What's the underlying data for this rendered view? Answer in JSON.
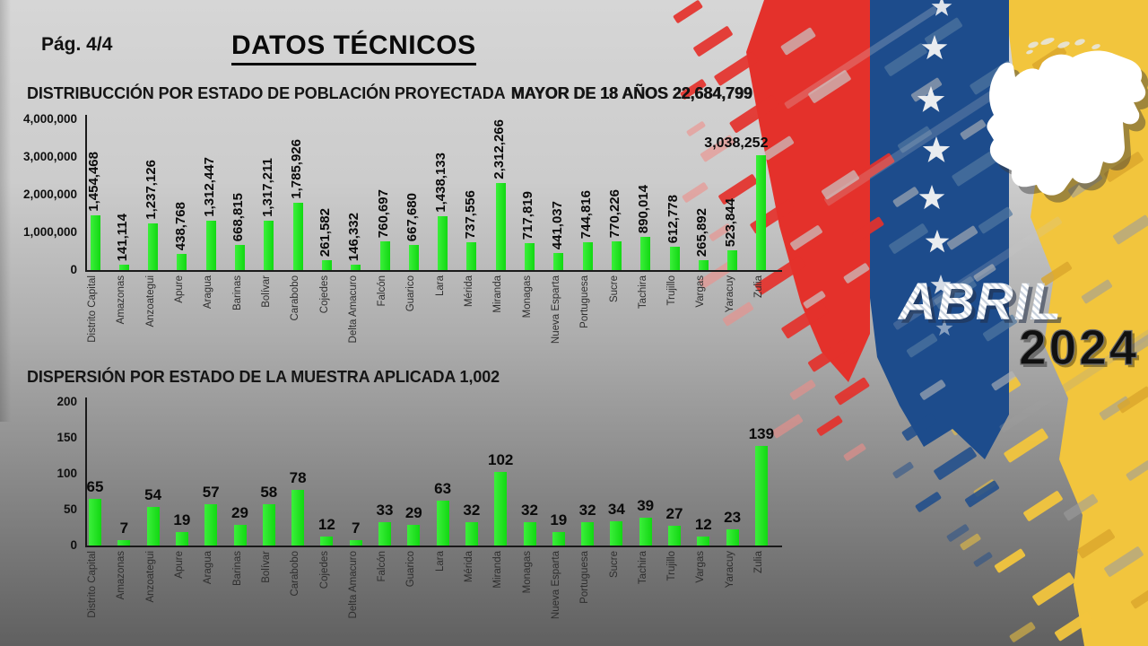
{
  "page": {
    "page_label": "Pág.  4/4",
    "title": "DATOS TÉCNICOS",
    "badge": {
      "month": "ABRIL",
      "year": "2024"
    }
  },
  "colors": {
    "bar_green": "#1ce41c",
    "flag_red": "#e4312b",
    "flag_blue": "#1d4c8c",
    "flag_yellow": "#f2c53d",
    "map_white": "#ffffff",
    "text_black": "#0a0a0a"
  },
  "chart_data": [
    {
      "type": "bar",
      "title": "DISTRIBUCCIÓN POR ESTADO DE POBLACIÓN PROYECTADA",
      "title_bold": "MAYOR DE 18 AÑOS 22,684,799",
      "total_label": "22,684,799",
      "categories": [
        "Distrito Capital",
        "Amazonas",
        "Anzoategui",
        "Apure",
        "Aragua",
        "Barinas",
        "Bolívar",
        "Carabobo",
        "Cojedes",
        "Delta Amacuro",
        "Falcón",
        "Guarico",
        "Lara",
        "Mérida",
        "Miranda",
        "Monagas",
        "Nueva Esparta",
        "Portuguesa",
        "Sucre",
        "Tachira",
        "Trujillo",
        "Vargas",
        "Yaracuy",
        "Zulia"
      ],
      "values": [
        1454468,
        141114,
        1237126,
        438768,
        1312447,
        668815,
        1317211,
        1785926,
        261582,
        146332,
        760697,
        667680,
        1438133,
        737556,
        2312266,
        717819,
        441037,
        744816,
        770226,
        890014,
        612778,
        265892,
        523844,
        3038252
      ],
      "labels": [
        "1,454,468",
        "141,114",
        "1,237,126",
        "438,768",
        "1,312,447",
        "668,815",
        "1,317,211",
        "1,785,926",
        "261,582",
        "146,332",
        "760,697",
        "667,680",
        "1,438,133",
        "737,556",
        "2,312,266",
        "717,819",
        "441,037",
        "744,816",
        "770,226",
        "890,014",
        "612,778",
        "265,892",
        "523,844",
        "3,038,252"
      ],
      "ylim": [
        0,
        4000000
      ],
      "yticks": [
        0,
        1000000,
        2000000,
        3000000,
        4000000
      ],
      "ytick_labels": [
        "0",
        "1,000,000",
        "2,000,000",
        "3,000,000",
        "4,000,000"
      ],
      "grid": false,
      "legend": null,
      "bar_color": "#1ce41c",
      "value_label_orientation": "vertical",
      "horizontal_value_labels": [
        "Zulia"
      ]
    },
    {
      "type": "bar",
      "title": "DISPERSIÓN POR ESTADO DE LA MUESTRA APLICADA 1,002",
      "total_label": "1,002",
      "categories": [
        "Distrito Capital",
        "Amazonas",
        "Anzoategui",
        "Apure",
        "Aragua",
        "Barinas",
        "Bolívar",
        "Carabobo",
        "Cojedes",
        "Delta Amacuro",
        "Falcón",
        "Guarico",
        "Lara",
        "Mérida",
        "Miranda",
        "Monagas",
        "Nueva Esparta",
        "Portuguesa",
        "Sucre",
        "Tachira",
        "Trujillo",
        "Vargas",
        "Yaracuy",
        "Zulia"
      ],
      "values": [
        65,
        7,
        54,
        19,
        57,
        29,
        58,
        78,
        12,
        7,
        33,
        29,
        63,
        32,
        102,
        32,
        19,
        32,
        34,
        39,
        27,
        12,
        23,
        139
      ],
      "labels": [
        "65",
        "7",
        "54",
        "19",
        "57",
        "29",
        "58",
        "78",
        "12",
        "7",
        "33",
        "29",
        "63",
        "32",
        "102",
        "32",
        "19",
        "32",
        "34",
        "39",
        "27",
        "12",
        "23",
        "139"
      ],
      "ylim": [
        0,
        200
      ],
      "yticks": [
        0,
        50,
        100,
        150,
        200
      ],
      "ytick_labels": [
        "0",
        "50",
        "100",
        "150",
        "200"
      ],
      "grid": false,
      "legend": null,
      "bar_color": "#1ce41c",
      "value_label_orientation": "horizontal",
      "horizontal_value_labels": []
    }
  ]
}
